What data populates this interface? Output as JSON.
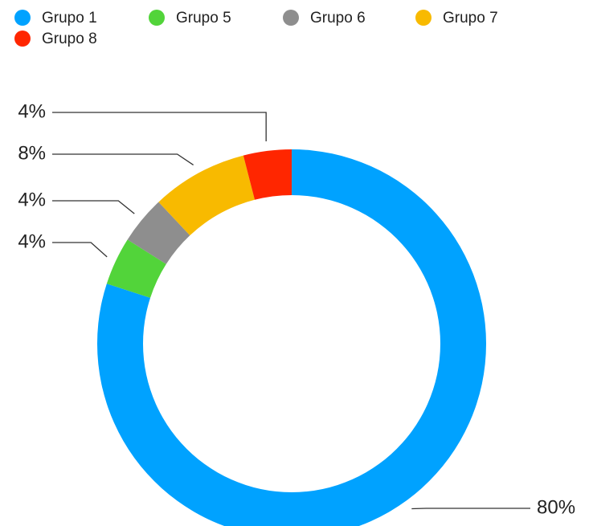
{
  "chart_data": {
    "type": "donut",
    "categories": [
      "Grupo 1",
      "Grupo 5",
      "Grupo 6",
      "Grupo 7",
      "Grupo 8"
    ],
    "values": [
      80,
      4,
      4,
      8,
      4
    ],
    "value_labels": [
      "80%",
      "4%",
      "4%",
      "8%",
      "4%"
    ],
    "colors": [
      "#00a2ff",
      "#52d43a",
      "#8e8e8e",
      "#f8ba00",
      "#ff2600"
    ],
    "legend": "top"
  }
}
